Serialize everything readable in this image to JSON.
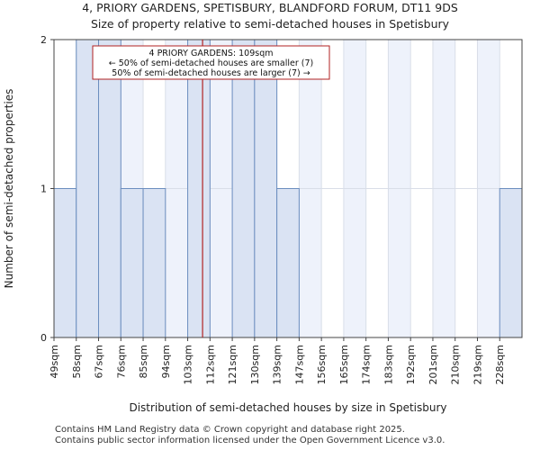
{
  "title": "4, PRIORY GARDENS, SPETISBURY, BLANDFORD FORUM, DT11 9DS",
  "subtitle": "Size of property relative to semi-detached houses in Spetisbury",
  "footer": {
    "line1": "Contains HM Land Registry data © Crown copyright and database right 2025.",
    "line2": "Contains public sector information licensed under the Open Government Licence v3.0."
  },
  "colors": {
    "bar_fill": "#dae3f3",
    "bar_stroke": "#6c8ebf",
    "band_fill": "#eef2fb",
    "grid": "#d9dee8",
    "marker": "#b22222"
  },
  "chart_data": {
    "type": "bar",
    "title": "4, PRIORY GARDENS, SPETISBURY, BLANDFORD FORUM, DT11 9DS",
    "subtitle": "Size of property relative to semi-detached houses in Spetisbury",
    "xlabel": "Distribution of semi-detached houses by size in Spetisbury",
    "ylabel": "Number of semi-detached properties",
    "categories": [
      "49sqm",
      "58sqm",
      "67sqm",
      "76sqm",
      "85sqm",
      "94sqm",
      "103sqm",
      "112sqm",
      "121sqm",
      "130sqm",
      "139sqm",
      "147sqm",
      "156sqm",
      "165sqm",
      "174sqm",
      "183sqm",
      "192sqm",
      "201sqm",
      "210sqm",
      "219sqm",
      "228sqm"
    ],
    "values": [
      1,
      2,
      2,
      1,
      1,
      0,
      2,
      0,
      2,
      2,
      1,
      0,
      0,
      0,
      0,
      0,
      0,
      0,
      0,
      0,
      1
    ],
    "ylim": [
      0,
      2
    ],
    "yticks": [
      0,
      1,
      2
    ],
    "grid": true,
    "marker": {
      "value_sqm": 109,
      "label_line1": "4 PRIORY GARDENS: 109sqm",
      "label_line2": "← 50% of semi-detached houses are smaller (7)",
      "label_line3": "50% of semi-detached houses are larger (7) →"
    }
  }
}
